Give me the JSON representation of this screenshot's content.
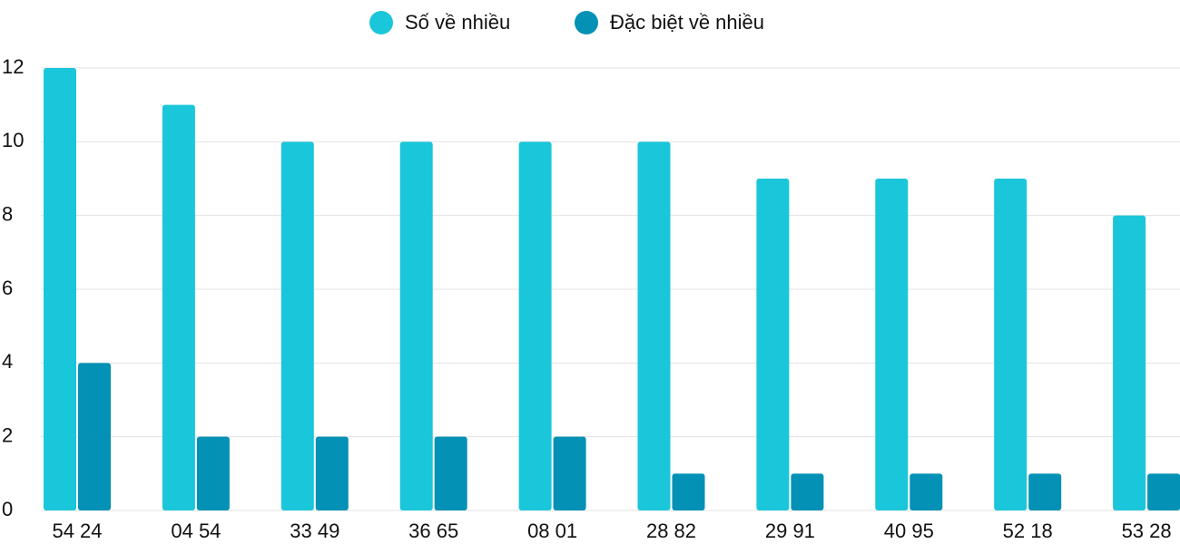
{
  "chart_data": {
    "type": "bar",
    "categories": [
      "54 24",
      "04 54",
      "33 49",
      "36 65",
      "08 01",
      "28 82",
      "29 91",
      "40 95",
      "52 18",
      "53 28"
    ],
    "series": [
      {
        "name": "Số về nhiều",
        "color": "#1ac6da",
        "values": [
          12,
          11,
          10,
          10,
          10,
          10,
          9,
          9,
          9,
          8
        ]
      },
      {
        "name": "Đặc biệt về nhiều",
        "color": "#0391b5",
        "values": [
          4,
          2,
          2,
          2,
          2,
          1,
          1,
          1,
          1,
          1
        ]
      }
    ],
    "ylim": [
      0,
      12
    ],
    "yticks": [
      0,
      2,
      4,
      6,
      8,
      10,
      12
    ],
    "grid": true,
    "legend": "top"
  }
}
